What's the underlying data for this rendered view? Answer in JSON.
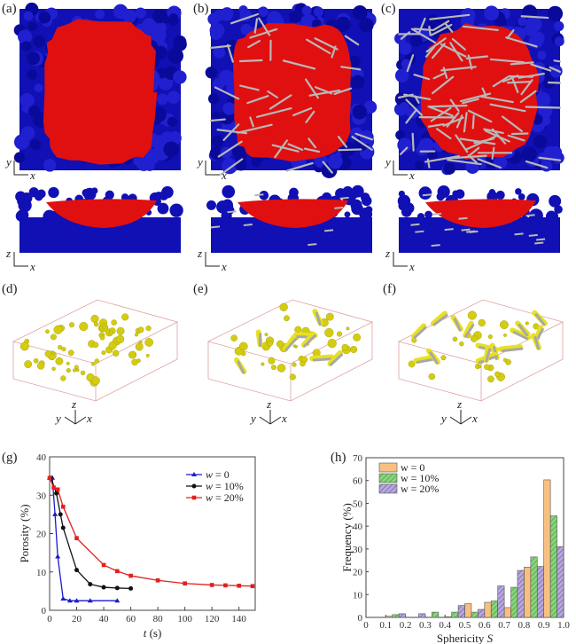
{
  "panels": {
    "a": "(a)",
    "b": "(b)",
    "c": "(c)",
    "d": "(d)",
    "e": "(e)",
    "f": "(f)",
    "g": "(g)",
    "h": "(h)"
  },
  "axes_labels": {
    "x": "x",
    "y": "y",
    "z": "z"
  },
  "colors": {
    "substrate": "#1010b4",
    "melt": "#e01010",
    "fiber": "#b8b8b8",
    "pore": "#e8e010",
    "box": "#e0a0a0"
  },
  "chart_data": [
    {
      "type": "line",
      "title": "",
      "xlabel_italic": "t",
      "xlabel_unit": " (s)",
      "ylabel": "Porosity (%)",
      "xlim": [
        0,
        152
      ],
      "ylim": [
        0,
        40
      ],
      "xticks": [
        0,
        20,
        40,
        60,
        80,
        100,
        120,
        140
      ],
      "yticks": [
        0,
        10,
        20,
        30,
        40
      ],
      "legend_position": "top-right",
      "series": [
        {
          "name": "w = 0",
          "legend_var": "w",
          "legend_val": " = 0",
          "color": "#1a1acc",
          "marker": "triangle",
          "x": [
            0,
            2,
            4,
            6,
            10,
            15,
            20,
            30,
            50
          ],
          "y": [
            34.5,
            34.5,
            25,
            14,
            3,
            2.5,
            2.5,
            2.5,
            2.5
          ]
        },
        {
          "name": "w = 10%",
          "legend_var": "w",
          "legend_val": " = 10%",
          "color": "#111111",
          "marker": "circle",
          "x": [
            1,
            5,
            8,
            10,
            20,
            30,
            40,
            50,
            60
          ],
          "y": [
            34.5,
            30.5,
            25,
            21.5,
            10.5,
            6.8,
            6,
            5.8,
            5.7
          ]
        },
        {
          "name": "w = 20%",
          "legend_var": "w",
          "legend_val": " = 20%",
          "color": "#e02020",
          "marker": "square",
          "x": [
            0,
            3,
            6,
            10,
            20,
            40,
            50,
            60,
            80,
            100,
            120,
            130,
            140,
            150
          ],
          "y": [
            34.5,
            32,
            31.5,
            27,
            18.8,
            11.8,
            10.2,
            9,
            7.8,
            7,
            6.6,
            6.5,
            6.4,
            6.3
          ]
        }
      ]
    },
    {
      "type": "bar",
      "title": "",
      "xlabel_text": "Sphericity ",
      "xlabel_italic": "S",
      "ylabel": "Frequency (%)",
      "xlim": [
        0,
        1.0
      ],
      "ylim": [
        0,
        70
      ],
      "xticks": [
        "0",
        "0.1",
        "0.2",
        "0.3",
        "0.4",
        "0.5",
        "0.6",
        "0.7",
        "0.8",
        "0.9",
        "1.0"
      ],
      "yticks": [
        0,
        10,
        20,
        30,
        40,
        50,
        60,
        70
      ],
      "legend_position": "top-left",
      "bins": [
        [
          0.1,
          0.2
        ],
        [
          0.2,
          0.3
        ],
        [
          0.3,
          0.4
        ],
        [
          0.4,
          0.5
        ],
        [
          0.5,
          0.6
        ],
        [
          0.6,
          0.7
        ],
        [
          0.7,
          0.8
        ],
        [
          0.8,
          0.9
        ],
        [
          0.9,
          1.0
        ]
      ],
      "series": [
        {
          "name": "w = 0",
          "color": "#f8c080",
          "hatch": false,
          "values": [
            0.5,
            0,
            0,
            0.3,
            6,
            6.6,
            4.3,
            22,
            60.3
          ]
        },
        {
          "name": "w = 10%",
          "color": "#8cd47c",
          "hatch": true,
          "values": [
            1.2,
            0,
            2.3,
            2.3,
            2.3,
            7.2,
            13.2,
            26.5,
            44.5
          ]
        },
        {
          "name": "w = 20%",
          "color": "#b8a8dc",
          "hatch": true,
          "values": [
            1.6,
            1.6,
            0,
            5.2,
            3.5,
            13.8,
            20.6,
            22.3,
            31
          ]
        }
      ]
    }
  ]
}
